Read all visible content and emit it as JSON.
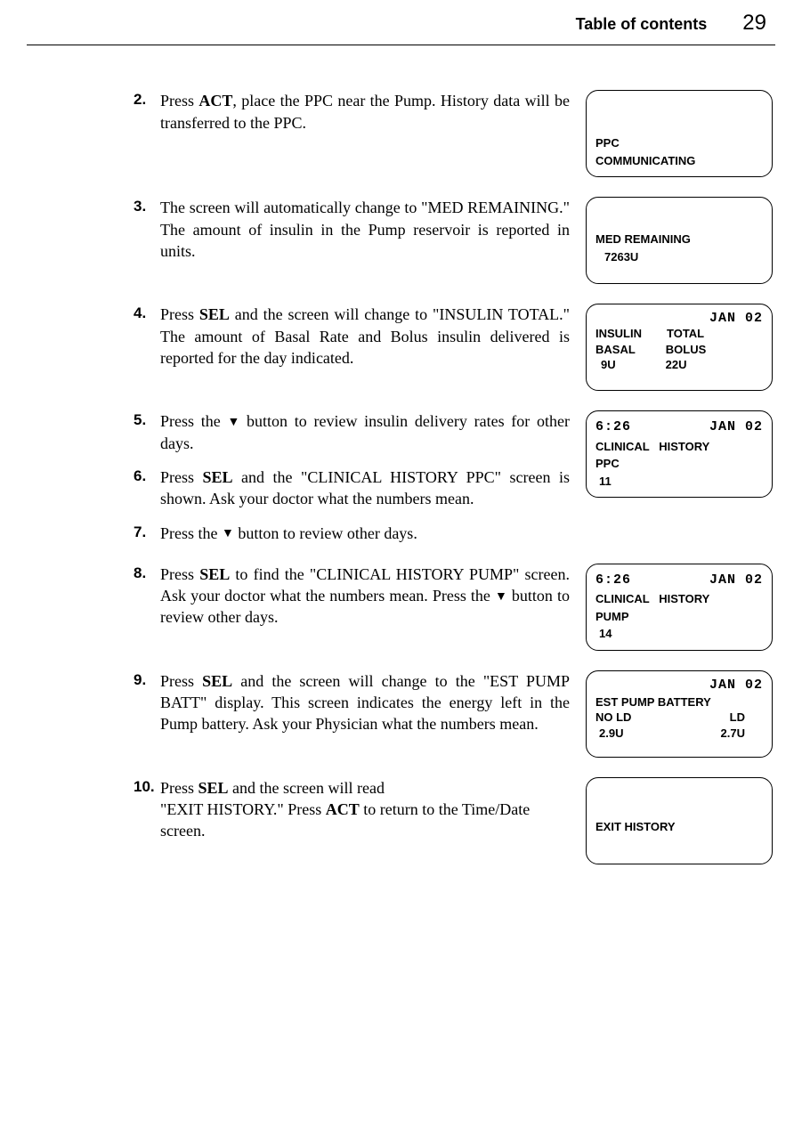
{
  "header": {
    "title": "Table of contents",
    "page": "29"
  },
  "steps": {
    "s2": {
      "num": "2.",
      "text": "Press <b>ACT</b>, place the PPC near the Pump. History data will be transferred to the PPC."
    },
    "s3": {
      "num": "3.",
      "text": "The screen will automatically change to \"MED REMAINING.\" The amount of insulin in the Pump reservoir is reported in units."
    },
    "s4": {
      "num": "4.",
      "text": "Press <b>SEL</b> and the screen will change to \"INSULIN TOTAL.\" The amount of Basal Rate and Bolus insulin delivered is reported for the day indicated."
    },
    "s5": {
      "num": "5.",
      "text": "Press the <span class='tri'>▼</span> button to review insulin delivery rates for other days."
    },
    "s6": {
      "num": "6.",
      "text": "Press <b>SEL</b> and the \"CLINICAL HISTORY PPC\" screen is shown. Ask your doctor what the numbers mean."
    },
    "s7": {
      "num": "7.",
      "text": "Press the <span class='tri'>▼</span> button to review other days."
    },
    "s8": {
      "num": "8.",
      "text": "Press <b>SEL</b> to find the \"CLINICAL HISTORY PUMP\" screen. Ask your doctor what the numbers mean. Press the <span class='tri'>▼</span> button to review other days."
    },
    "s9": {
      "num": "9.",
      "text": "Press <b>SEL</b> and the screen will change to the \"EST PUMP BATT\" display. This screen indicates the energy left in the Pump battery. Ask your Physician what the numbers mean."
    },
    "s10": {
      "num": "10.",
      "text": "Press <b>SEL</b> and the screen will read<br>\"EXIT HISTORY.\" Press <b>ACT</b> to return to the Time/Date screen."
    }
  },
  "lcd1": {
    "l1": "PPC",
    "l2": "COMMUNICATING"
  },
  "lcd2": {
    "l1": "MED REMAINING",
    "l2": "7263U"
  },
  "lcd3": {
    "date": "JAN 02",
    "a1": "INSULIN",
    "a2": "TOTAL",
    "b1": "BASAL",
    "b2": "BOLUS",
    "c1": "9U",
    "c2": "22U"
  },
  "lcd4": {
    "time": "6:26",
    "date": "JAN 02",
    "l1": "CLINICAL   HISTORY",
    "l2": "PPC",
    "l3": "11"
  },
  "lcd5": {
    "time": "6:26",
    "date": "JAN 02",
    "l1": "CLINICAL   HISTORY",
    "l2": "PUMP",
    "l3": "14"
  },
  "lcd6": {
    "date": "JAN 02",
    "l1": "EST PUMP BATTERY",
    "a1": "NO LD",
    "a2": "LD",
    "b1": "2.9U",
    "b2": "2.7U"
  },
  "lcd7": {
    "l1": "EXIT HISTORY"
  }
}
